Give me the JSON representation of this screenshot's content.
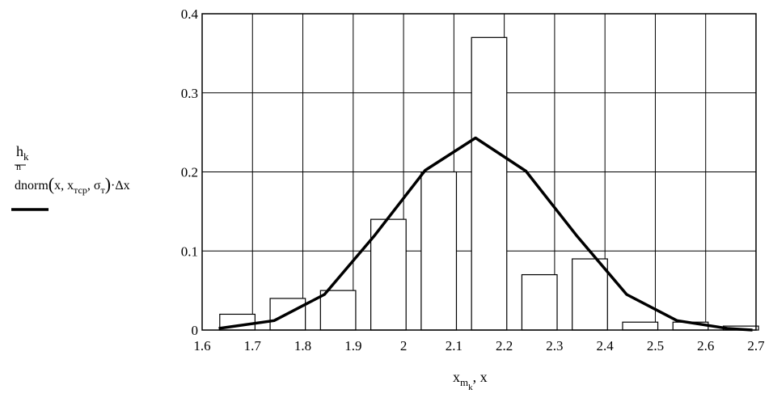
{
  "chart_data": {
    "type": "bar",
    "xlim": [
      1.6,
      2.7
    ],
    "ylim": [
      0,
      0.4
    ],
    "grid": true,
    "x_ticks": [
      "1.6",
      "1.7",
      "1.8",
      "1.9",
      "2",
      "2.1",
      "2.2",
      "2.3",
      "2.4",
      "2.5",
      "2.6",
      "2.7"
    ],
    "y_ticks": [
      "0",
      "0.1",
      "0.2",
      "0.3",
      "0.4"
    ],
    "xlabel": {
      "main": "x",
      "sub1": "m",
      "sub2": "k",
      "rest": ", x"
    },
    "ylabel": {
      "series1": {
        "main": "h",
        "sub": "k",
        "suffix": "n"
      },
      "series2": {
        "fn": "dnorm",
        "arg1": "x",
        "arg2": "x",
        "arg2_sub": "тср",
        "arg3": "σ",
        "arg3_sub": "т",
        "mult": "·Δx"
      }
    },
    "series": [
      {
        "type": "bar",
        "bars": [
          {
            "x": 1.635,
            "width": 0.07,
            "y": 0.02
          },
          {
            "x": 1.735,
            "width": 0.07,
            "y": 0.04
          },
          {
            "x": 1.835,
            "width": 0.07,
            "y": 0.05
          },
          {
            "x": 1.935,
            "width": 0.07,
            "y": 0.14
          },
          {
            "x": 2.035,
            "width": 0.07,
            "y": 0.2
          },
          {
            "x": 2.135,
            "width": 0.07,
            "y": 0.37
          },
          {
            "x": 2.235,
            "width": 0.07,
            "y": 0.07
          },
          {
            "x": 2.335,
            "width": 0.07,
            "y": 0.09
          },
          {
            "x": 2.435,
            "width": 0.07,
            "y": 0.01
          },
          {
            "x": 2.535,
            "width": 0.07,
            "y": 0.01
          },
          {
            "x": 2.635,
            "width": 0.07,
            "y": 0.005
          }
        ]
      },
      {
        "type": "line",
        "color": "#000000",
        "x": [
          1.633,
          1.743,
          1.843,
          1.943,
          2.043,
          2.143,
          2.243,
          2.343,
          2.443,
          2.543,
          2.643,
          2.693
        ],
        "y": [
          0.002,
          0.012,
          0.045,
          0.12,
          0.202,
          0.243,
          0.201,
          0.12,
          0.045,
          0.012,
          0.002,
          0.0
        ]
      }
    ]
  }
}
